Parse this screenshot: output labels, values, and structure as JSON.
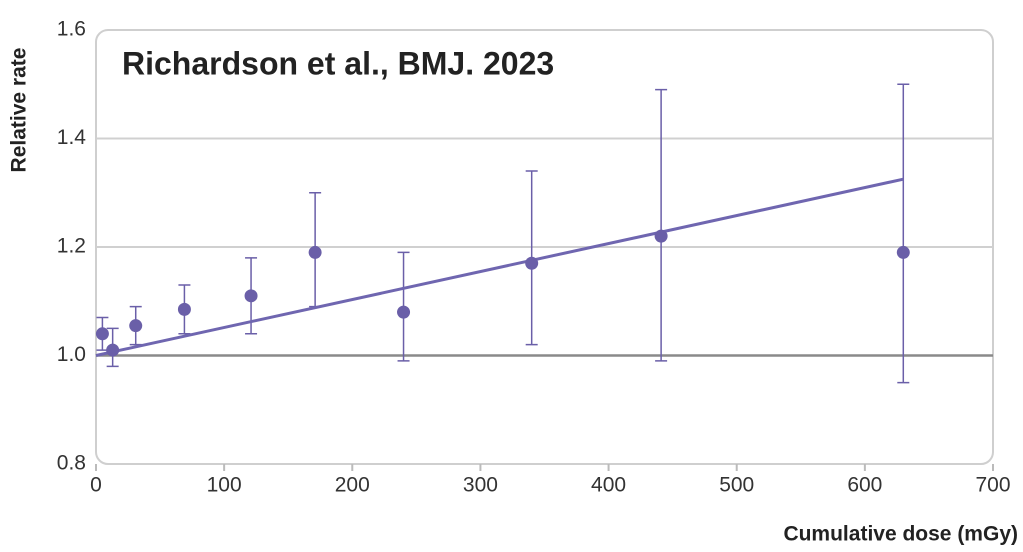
{
  "chart_data": {
    "type": "scatter",
    "title": "Richardson et al., BMJ. 2023",
    "xlabel": "Cumulative dose (mGy)",
    "ylabel": "Relative rate",
    "x": [
      5,
      13,
      31,
      69,
      121,
      171,
      240,
      340,
      441,
      630
    ],
    "values": [
      1.04,
      1.01,
      1.055,
      1.085,
      1.11,
      1.19,
      1.08,
      1.17,
      1.22,
      1.19
    ],
    "ci_lower": [
      1.01,
      0.98,
      1.02,
      1.04,
      1.04,
      1.09,
      0.99,
      1.02,
      0.99,
      0.95
    ],
    "ci_upper": [
      1.07,
      1.05,
      1.09,
      1.13,
      1.18,
      1.3,
      1.19,
      1.34,
      1.49,
      1.5
    ],
    "color": "#6a5fa8",
    "fit": {
      "x": [
        0,
        630
      ],
      "y": [
        1.0,
        1.325
      ],
      "color": "#6f66b0"
    },
    "reference_line": {
      "value": 1.0,
      "color": "#8a8a8a"
    },
    "xlim": [
      0,
      700
    ],
    "xticks": [
      0,
      100,
      200,
      300,
      400,
      500,
      600,
      700
    ],
    "ylim": [
      0.8,
      1.6
    ],
    "yticks": [
      0.8,
      {
        "value": 1,
        "label": "1.0"
      },
      1.2,
      1.4,
      1.6
    ],
    "grid": true
  }
}
